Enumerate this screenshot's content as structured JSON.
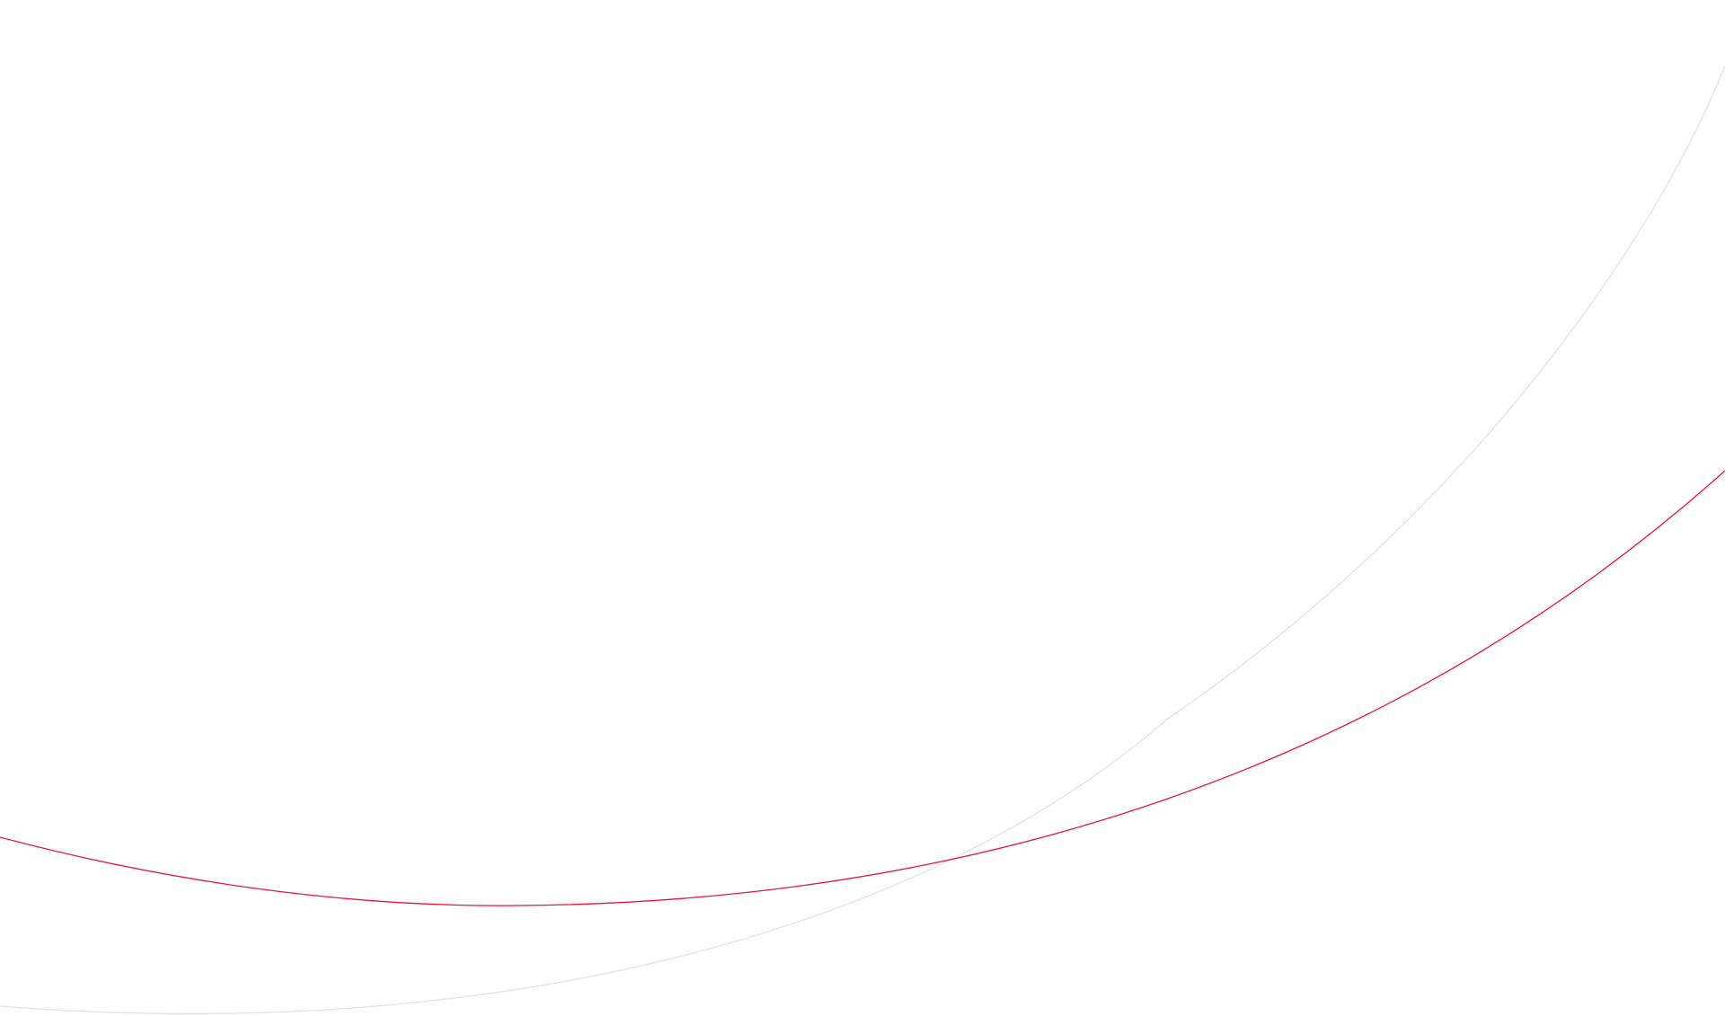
{
  "background": {
    "color": "#ffffff"
  },
  "decorations": {
    "accent_curve_color": "#e8173c",
    "subtle_curve_color": "#e6e6e6"
  }
}
